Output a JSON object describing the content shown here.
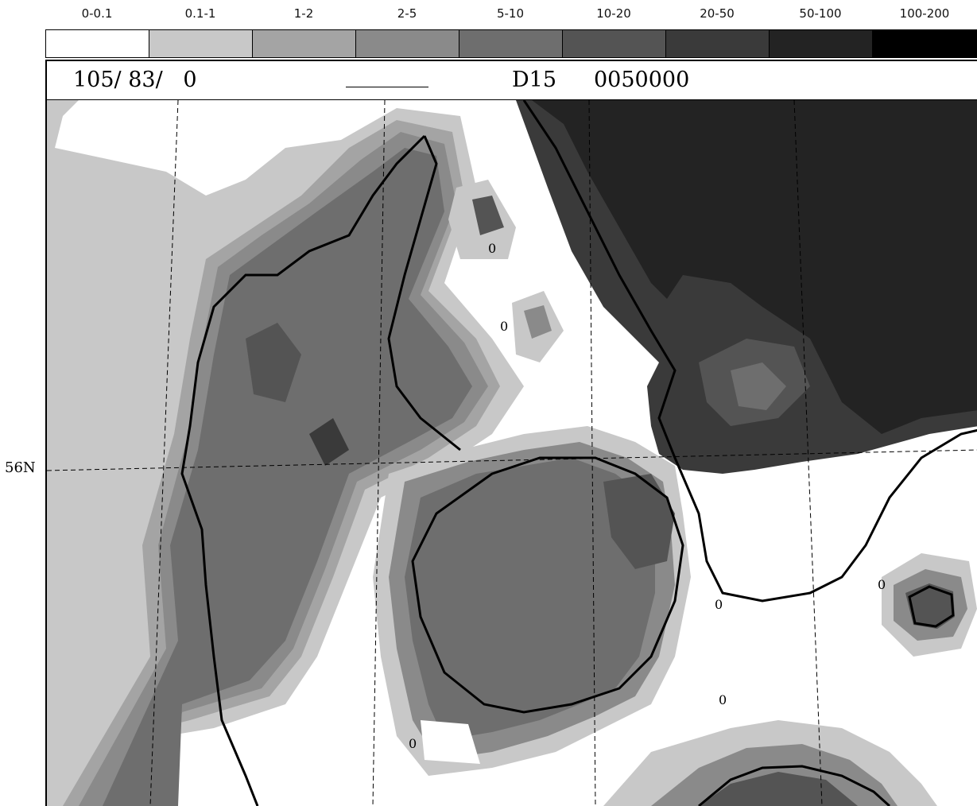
{
  "legend": {
    "classes": [
      {
        "label": "0-0.1",
        "color": "#ffffff"
      },
      {
        "label": "0.1-1",
        "color": "#c8c8c8"
      },
      {
        "label": "1-2",
        "color": "#a4a4a4"
      },
      {
        "label": "2-5",
        "color": "#8a8a8a"
      },
      {
        "label": "5-10",
        "color": "#6e6e6e"
      },
      {
        "label": "10-20",
        "color": "#545454"
      },
      {
        "label": "20-50",
        "color": "#3a3a3a"
      },
      {
        "label": "50-100",
        "color": "#232323"
      },
      {
        "label": "100-200",
        "color": "#000000"
      }
    ]
  },
  "info": {
    "grid_index": "105/ 83/   0",
    "field_code": "D15",
    "time_code": "0050000"
  },
  "map": {
    "latitude_label": "56N",
    "contour_labels": [
      "0",
      "0",
      "0",
      "0",
      "0",
      "0"
    ],
    "sea_color": "#ffffff",
    "coast_color": "#000000"
  }
}
